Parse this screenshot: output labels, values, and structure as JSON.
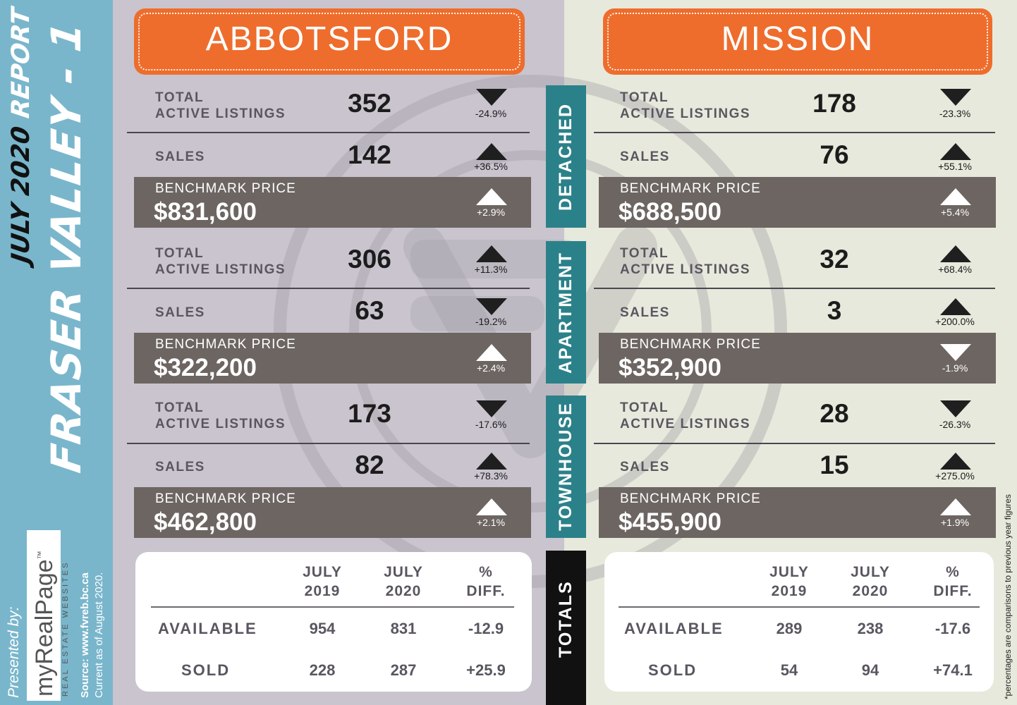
{
  "sidebar": {
    "subtitle_date": "JULY 2020",
    "subtitle_report": "REPORT",
    "title": "FRASER VALLEY - 1",
    "presented_by": "Presented by:",
    "brand": "myRealPage",
    "brand_tm": "™",
    "brand_tagline": "REAL ESTATE WEBSITES",
    "source": "Source: www.fvreb.bc.ca",
    "current": "Current as of August 2020."
  },
  "categories": {
    "detached": "DETACHED",
    "apartment": "APARTMENT",
    "townhouse": "TOWNHOUSE",
    "totals": "TOTALS"
  },
  "labels": {
    "total_line1": "TOTAL",
    "total_line2": "ACTIVE LISTINGS",
    "sales": "SALES",
    "benchmark": "BENCHMARK PRICE"
  },
  "abbotsford": {
    "name": "ABBOTSFORD",
    "detached": {
      "active": "352",
      "active_pct": "-24.9%",
      "sales": "142",
      "sales_pct": "+36.5%",
      "price": "$831,600",
      "price_pct": "+2.9%"
    },
    "apartment": {
      "active": "306",
      "active_pct": "+11.3%",
      "sales": "63",
      "sales_pct": "-19.2%",
      "price": "$322,200",
      "price_pct": "+2.4%"
    },
    "townhouse": {
      "active": "173",
      "active_pct": "-17.6%",
      "sales": "82",
      "sales_pct": "+78.3%",
      "price": "$462,800",
      "price_pct": "+2.1%"
    },
    "totals": {
      "available_2019": "954",
      "available_2020": "831",
      "available_diff": "-12.9",
      "sold_2019": "228",
      "sold_2020": "287",
      "sold_diff": "+25.9"
    }
  },
  "mission": {
    "name": "MISSION",
    "detached": {
      "active": "178",
      "active_pct": "-23.3%",
      "sales": "76",
      "sales_pct": "+55.1%",
      "price": "$688,500",
      "price_pct": "+5.4%"
    },
    "apartment": {
      "active": "32",
      "active_pct": "+68.4%",
      "sales": "3",
      "sales_pct": "+200.0%",
      "price": "$352,900",
      "price_pct": "-1.9%"
    },
    "townhouse": {
      "active": "28",
      "active_pct": "-26.3%",
      "sales": "15",
      "sales_pct": "+275.0%",
      "price": "$455,900",
      "price_pct": "+1.9%"
    },
    "totals": {
      "available_2019": "289",
      "available_2020": "238",
      "available_diff": "-17.6",
      "sold_2019": "54",
      "sold_2020": "94",
      "sold_diff": "+74.1"
    }
  },
  "totals_headers": {
    "col1_line1": "JULY",
    "col1_line2": "2019",
    "col2_line1": "JULY",
    "col2_line2": "2020",
    "col3_line1": "%",
    "col3_line2": "DIFF.",
    "row1": "AVAILABLE",
    "row2": "SOLD"
  },
  "footnote": "*percentages are comparisons to previous year figures",
  "colors": {
    "orange": "#ee6d2c",
    "teal": "#2b8189",
    "sidebar": "#79b6cc",
    "band": "#6c6562"
  }
}
